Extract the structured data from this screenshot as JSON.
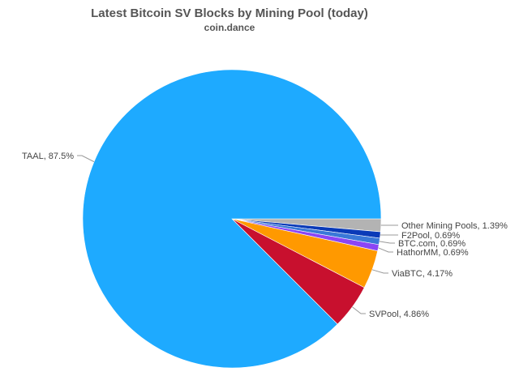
{
  "chart_data": {
    "type": "pie",
    "title": "Latest Bitcoin SV Blocks by Mining Pool (today)",
    "subtitle": "coin.dance",
    "slices": [
      {
        "label": "Other Mining Pools",
        "value": 1.39,
        "color": "#b3b3b3",
        "text": "Other Mining Pools, 1.39%"
      },
      {
        "label": "F2Pool",
        "value": 0.69,
        "color": "#0a3ab8",
        "text": "F2Pool, 0.69%"
      },
      {
        "label": "BTC.com",
        "value": 0.69,
        "color": "#3a78d8",
        "text": "BTC.com, 0.69%"
      },
      {
        "label": "HathorMM",
        "value": 0.69,
        "color": "#8b45f5",
        "text": "HathorMM, 0.69%"
      },
      {
        "label": "ViaBTC",
        "value": 4.17,
        "color": "#ff9900",
        "text": "ViaBTC, 4.17%"
      },
      {
        "label": "SVPool",
        "value": 4.86,
        "color": "#c8102e",
        "text": "SVPool, 4.86%"
      },
      {
        "label": "TAAL",
        "value": 87.5,
        "color": "#1eaaff",
        "text": "TAAL, 87.5%"
      }
    ]
  }
}
